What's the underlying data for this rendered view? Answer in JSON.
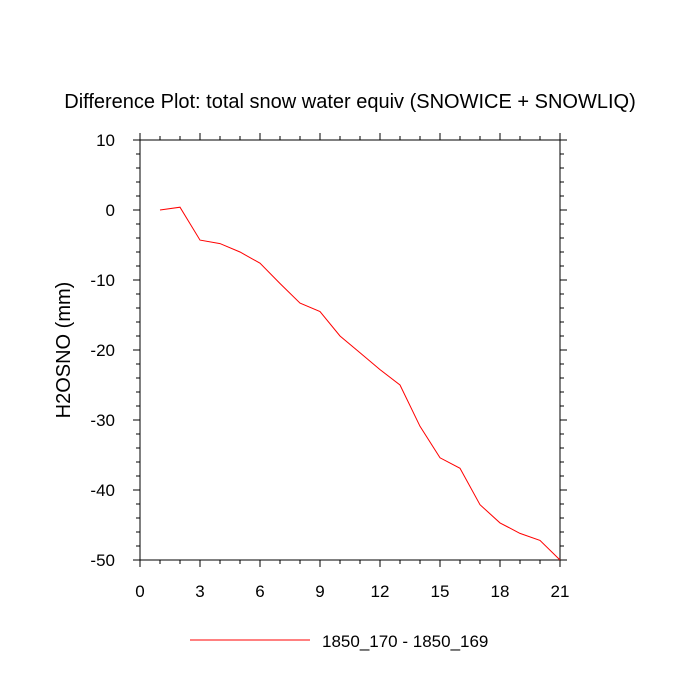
{
  "chart_data": {
    "type": "line",
    "title": "Difference Plot: total snow water equiv (SNOWICE + SNOWLIQ)",
    "ylabel": "H2OSNO  (mm)",
    "xlabel": "",
    "xlim": [
      0,
      21
    ],
    "ylim": [
      -50,
      10
    ],
    "x_ticks": [
      "0",
      "3",
      "6",
      "9",
      "12",
      "15",
      "18",
      "21"
    ],
    "y_ticks": [
      "10",
      "0",
      "-10",
      "-20",
      "-30",
      "-40",
      "-50"
    ],
    "grid": false,
    "legend_position": "bottom-center",
    "series": [
      {
        "name": "1850_170 - 1850_169",
        "color": "#ff0000",
        "x": [
          1,
          2,
          3,
          4,
          5,
          6,
          7,
          8,
          9,
          10,
          11,
          12,
          13,
          14,
          15,
          16,
          17,
          18,
          19,
          20,
          21
        ],
        "y": [
          0.0,
          0.4,
          -4.3,
          -4.8,
          -6.0,
          -7.6,
          -10.5,
          -13.3,
          -14.5,
          -18.0,
          -20.4,
          -22.8,
          -25.0,
          -30.9,
          -35.4,
          -36.9,
          -42.1,
          -44.7,
          -46.2,
          -47.2,
          -50.0
        ]
      }
    ]
  }
}
